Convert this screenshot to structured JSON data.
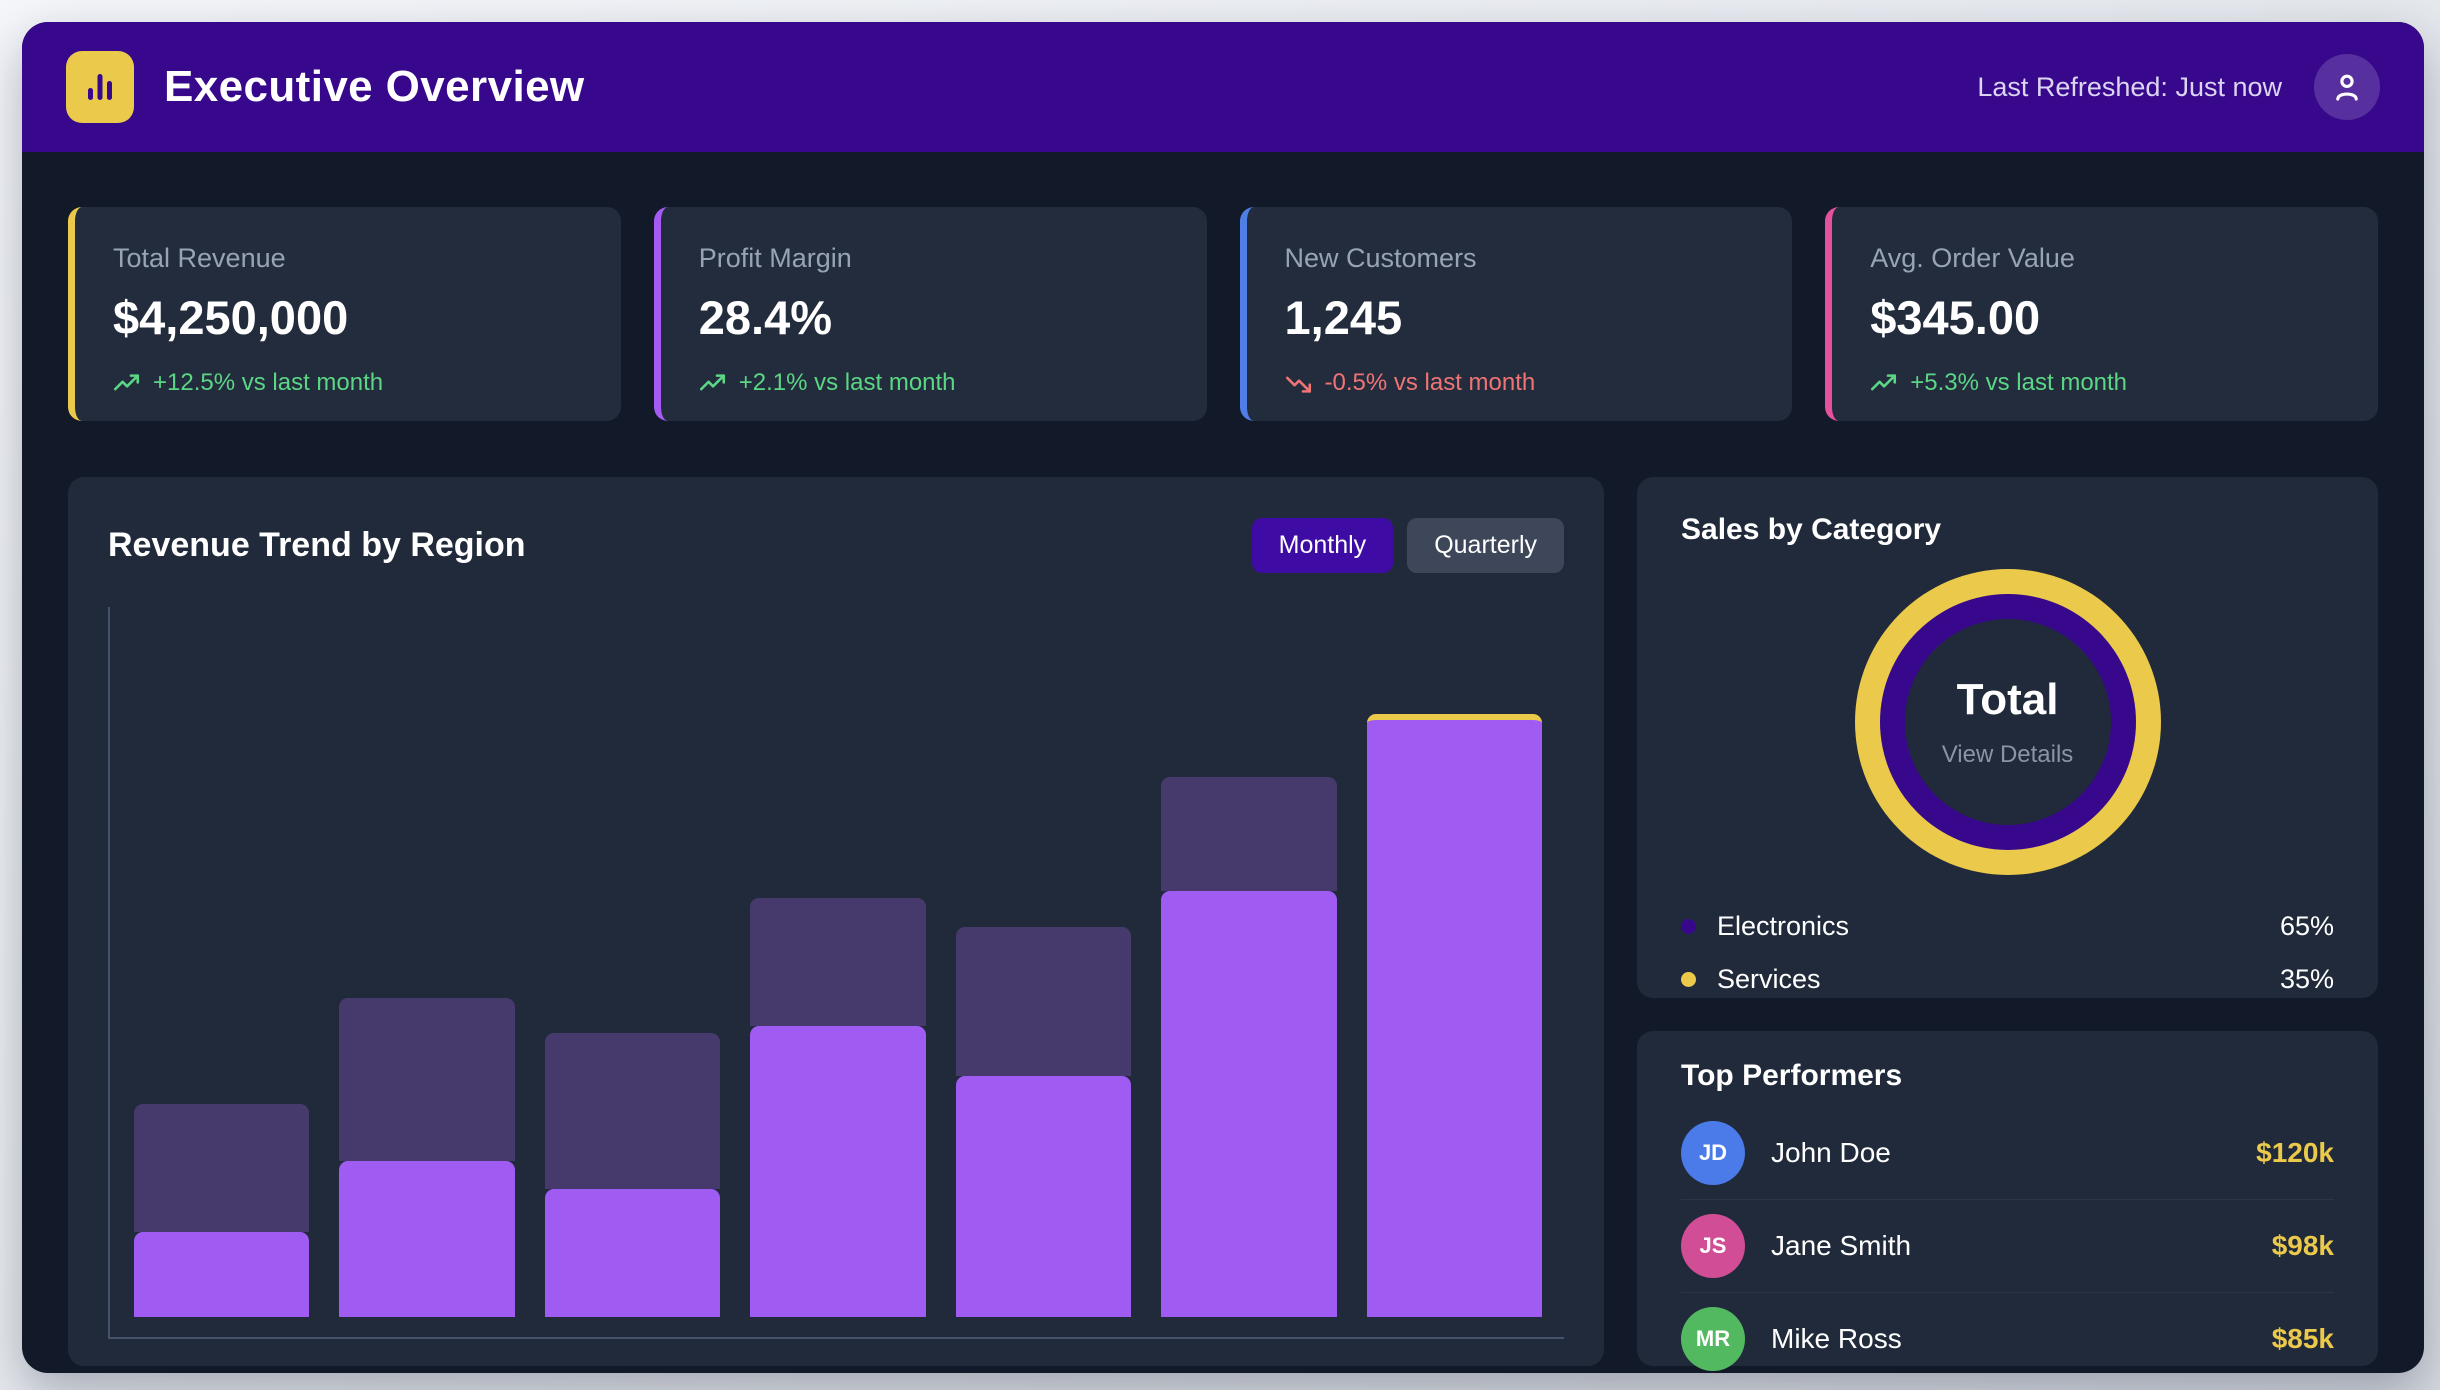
{
  "header": {
    "title": "Executive Overview",
    "last_refreshed": "Last Refreshed: Just now",
    "app_icon": "bar-chart-icon",
    "avatar_icon": "user-icon"
  },
  "kpis": [
    {
      "label": "Total Revenue",
      "value": "$4,250,000",
      "delta": "+12.5% vs last month",
      "direction": "up",
      "accent": "#EAC94B"
    },
    {
      "label": "Profit Margin",
      "value": "28.4%",
      "delta": "+2.1% vs last month",
      "direction": "up",
      "accent": "#A55BF2"
    },
    {
      "label": "New Customers",
      "value": "1,245",
      "delta": "-0.5% vs last month",
      "direction": "down",
      "accent": "#4F7FE6"
    },
    {
      "label": "Avg. Order Value",
      "value": "$345.00",
      "delta": "+5.3% vs last month",
      "direction": "up",
      "accent": "#E5519D"
    }
  ],
  "revenue_panel": {
    "title": "Revenue Trend by Region",
    "toggles": [
      {
        "label": "Monthly",
        "active": true
      },
      {
        "label": "Quarterly",
        "active": false
      }
    ]
  },
  "category_panel": {
    "title": "Sales by Category",
    "center_title": "Total",
    "center_sub": "View Details",
    "legend": [
      {
        "label": "Electronics",
        "value": "65%",
        "color": "#38088C"
      },
      {
        "label": "Services",
        "value": "35%",
        "color": "#EAC94B"
      }
    ]
  },
  "performers_panel": {
    "title": "Top Performers",
    "rows": [
      {
        "initials": "JD",
        "name": "John Doe",
        "amount": "$120k",
        "color": "#4A7BE8"
      },
      {
        "initials": "JS",
        "name": "Jane Smith",
        "amount": "$98k",
        "color": "#D14E97"
      },
      {
        "initials": "MR",
        "name": "Mike Ross",
        "amount": "$85k",
        "color": "#53B961"
      }
    ]
  },
  "chart_data": [
    {
      "type": "bar",
      "title": "Revenue Trend by Region",
      "stacked": true,
      "categories": [
        "",
        "",
        "",
        "",
        "",
        "",
        ""
      ],
      "series": [
        {
          "name": "bottom-segment",
          "color": "#A05CF2",
          "values": [
            12,
            22,
            18,
            41,
            34,
            60,
            85
          ]
        },
        {
          "name": "top-segment",
          "color": "#463A6C",
          "values": [
            18,
            23,
            22,
            18,
            21,
            16,
            0
          ]
        }
      ],
      "units": "percent of plot height (no numeric axis labels shown)",
      "highlight": {
        "bar_index": 6,
        "style": "yellow top cap",
        "color": "#EAC94B"
      },
      "axes": {
        "x_labels": false,
        "y_labels": false,
        "gridlines": false,
        "axis_color": "#46536A"
      }
    },
    {
      "type": "pie",
      "title": "Sales by Category",
      "slices": [
        {
          "label": "Electronics",
          "value": 65,
          "color": "#38088C"
        },
        {
          "label": "Services",
          "value": 35,
          "color": "#EAC94B"
        }
      ],
      "center_label": "Total",
      "center_sublabel": "View Details",
      "rendered_as": "concentric rings: yellow outer ring, purple inner ring, dark center hole",
      "legend_position": "bottom"
    }
  ],
  "colors": {
    "header_bg": "#38088C",
    "app_bg": "#121928",
    "panel_bg": "#212A3A",
    "card_bg": "#232C3D",
    "accent_yellow": "#EAC94B",
    "bar_primary": "#A05CF2",
    "bar_secondary": "#463A6C",
    "positive": "#5BD684",
    "negative": "#F07474",
    "muted_text": "#98A3B6"
  }
}
